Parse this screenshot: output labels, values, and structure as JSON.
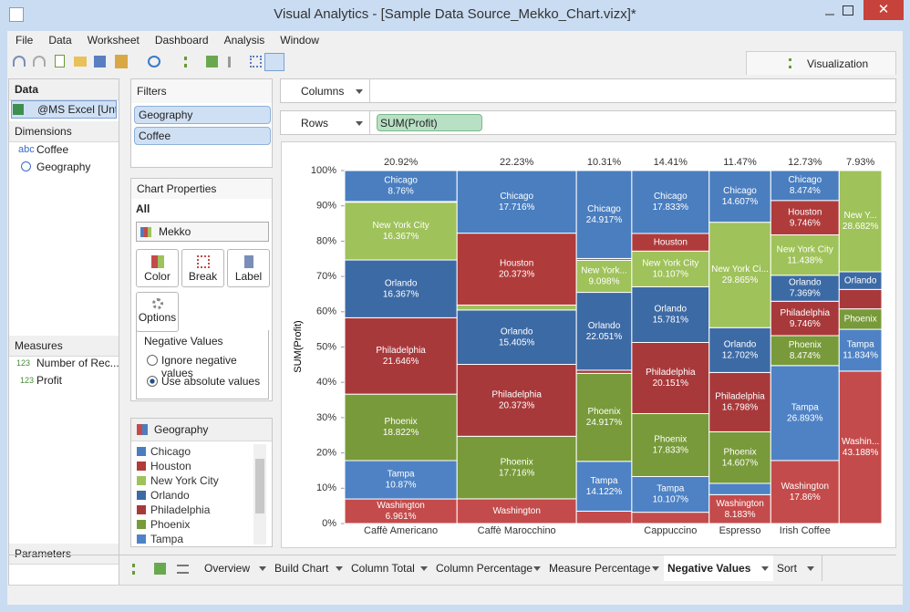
{
  "window": {
    "title": "Visual Analytics - [Sample Data Source_Mekko_Chart.vizx]*"
  },
  "menu": [
    "File",
    "Data",
    "Worksheet",
    "Dashboard",
    "Analysis",
    "Window"
  ],
  "visualization_tab": "Visualization",
  "data_pane": {
    "title": "Data",
    "source": "@MS Excel [Unt...",
    "dimensions_title": "Dimensions",
    "dimensions": [
      {
        "type": "abc",
        "name": "Coffee"
      },
      {
        "name": "Geography"
      }
    ],
    "measures_title": "Measures",
    "measures": [
      {
        "type": "123",
        "name": "Number of Rec..."
      },
      {
        "type": "123",
        "name": "Profit"
      }
    ],
    "parameters_title": "Parameters"
  },
  "filters": {
    "title": "Filters",
    "items": [
      "Geography",
      "Coffee"
    ]
  },
  "chart_properties": {
    "title": "Chart Properties",
    "tab": "All",
    "chart_type": "Mekko",
    "buttons": [
      "Color",
      "Break",
      "Label",
      "Options"
    ],
    "negative_values": {
      "title": "Negative Values",
      "options": [
        "Ignore negative values",
        "Use absolute values"
      ]
    }
  },
  "legend": {
    "title": "Geography"
  },
  "shelves": {
    "columns": "Columns",
    "rows": "Rows",
    "rows_pill": "SUM(Profit)"
  },
  "sheet_tabs": [
    "Overview",
    "Build Chart",
    "Column Total",
    "Column Percentage",
    "Measure Percentage",
    "Negative Values",
    "Sort"
  ],
  "chart_data": {
    "type": "mekko",
    "ylabel": "SUM(Profit)",
    "categories": [
      "Caffè Americano",
      "Caffè Marocchino",
      null,
      "Cappuccino",
      "Espresso",
      "Irish Coffee",
      null
    ],
    "widths": [
      20.92,
      22.23,
      10.31,
      14.41,
      11.47,
      12.73,
      7.93
    ],
    "width_labels": [
      "20.92%",
      "22.23%",
      "10.31%",
      "14.41%",
      "11.47%",
      "12.73%",
      "7.93%"
    ],
    "ylim": [
      0,
      100
    ],
    "yticks": [
      {
        "value": 0,
        "label": "0%"
      },
      {
        "value": 10,
        "label": "10%"
      },
      {
        "value": 20,
        "label": "20%"
      },
      {
        "value": 30,
        "label": "30%"
      },
      {
        "value": 40,
        "label": "40%"
      },
      {
        "value": 50,
        "label": "50%"
      },
      {
        "value": 60,
        "label": "60%"
      },
      {
        "value": 70,
        "label": "70%"
      },
      {
        "value": 80,
        "label": "80%"
      },
      {
        "value": 90,
        "label": "90%"
      },
      {
        "value": 100,
        "label": "100%"
      }
    ],
    "series": [
      {
        "name": "Chicago",
        "color": "#4a7ebf",
        "values": [
          8.76,
          17.716,
          24.917,
          17.833,
          14.607,
          8.474,
          0
        ],
        "labels": [
          "Chicago",
          "Chicago",
          "Chicago",
          "Chicago",
          "Chicago",
          "Chicago",
          null
        ],
        "value_labels": [
          "8.76%",
          "17.716%",
          "24.917%",
          "17.833%",
          "14.607%",
          "8.474%",
          null
        ]
      },
      {
        "name": "Houston",
        "color": "#b03b3b",
        "values": [
          0.2,
          20.373,
          0.5,
          5.0,
          0,
          9.746,
          0
        ],
        "labels": [
          null,
          "Houston",
          null,
          "Houston",
          null,
          "Houston",
          null
        ],
        "value_labels": [
          null,
          "20.373%",
          null,
          null,
          null,
          "9.746%",
          null
        ]
      },
      {
        "name": "New York City",
        "color": "#9fc25a",
        "values": [
          16.367,
          1.4,
          9.098,
          10.107,
          29.865,
          11.438,
          28.682
        ],
        "labels": [
          "New York City",
          null,
          "New York...",
          "New York City",
          "New York Ci...",
          "New York City",
          "New Y..."
        ],
        "value_labels": [
          "16.367%",
          null,
          "9.098%",
          "10.107%",
          "29.865%",
          "11.438%",
          "28.682%"
        ]
      },
      {
        "name": "Orlando",
        "color": "#3c6aa5",
        "values": [
          16.367,
          15.405,
          22.051,
          15.781,
          12.702,
          7.369,
          5.0
        ],
        "labels": [
          "Orlando",
          "Orlando",
          "Orlando",
          "Orlando",
          "Orlando",
          "Orlando",
          "Orlando"
        ],
        "value_labels": [
          "16.367%",
          "15.405%",
          "22.051%",
          "15.781%",
          "12.702%",
          "7.369%",
          null
        ]
      },
      {
        "name": "Philadelphia",
        "color": "#a8393b",
        "values": [
          21.646,
          20.373,
          0.9,
          20.151,
          16.798,
          9.746,
          5.5
        ],
        "labels": [
          "Philadelphia",
          "Philadelphia",
          null,
          "Philadelphia",
          "Philadelphia",
          "Philadelphia",
          null
        ],
        "value_labels": [
          "21.646%",
          "20.373%",
          null,
          "20.151%",
          "16.798%",
          "9.746%",
          null
        ]
      },
      {
        "name": "Phoenix",
        "color": "#789a3a",
        "values": [
          18.822,
          17.716,
          24.917,
          17.833,
          14.607,
          8.474,
          5.8
        ],
        "labels": [
          "Phoenix",
          "Phoenix",
          "Phoenix",
          "Phoenix",
          "Phoenix",
          "Phoenix",
          "Phoenix"
        ],
        "value_labels": [
          "18.822%",
          "17.716%",
          "24.917%",
          "17.833%",
          "14.607%",
          "8.474%",
          null
        ]
      },
      {
        "name": "Tampa",
        "color": "#4e82c5",
        "values": [
          10.87,
          0,
          14.122,
          10.107,
          3.2,
          26.893,
          11.834
        ],
        "labels": [
          "Tampa",
          null,
          "Tampa",
          "Tampa",
          null,
          "Tampa",
          "Tampa"
        ],
        "value_labels": [
          "10.87%",
          null,
          "14.122%",
          "10.107%",
          null,
          "26.893%",
          "11.834%"
        ]
      },
      {
        "name": "Washington",
        "color": "#c44b4b",
        "values": [
          6.961,
          7.0,
          3.5,
          3.2,
          8.183,
          17.86,
          43.188
        ],
        "labels": [
          "Washington",
          "Washington",
          null,
          null,
          "Washington",
          "Washington",
          "Washin..."
        ],
        "value_labels": [
          "6.961%",
          null,
          null,
          null,
          "8.183%",
          "17.86%",
          "43.188%"
        ]
      }
    ]
  }
}
